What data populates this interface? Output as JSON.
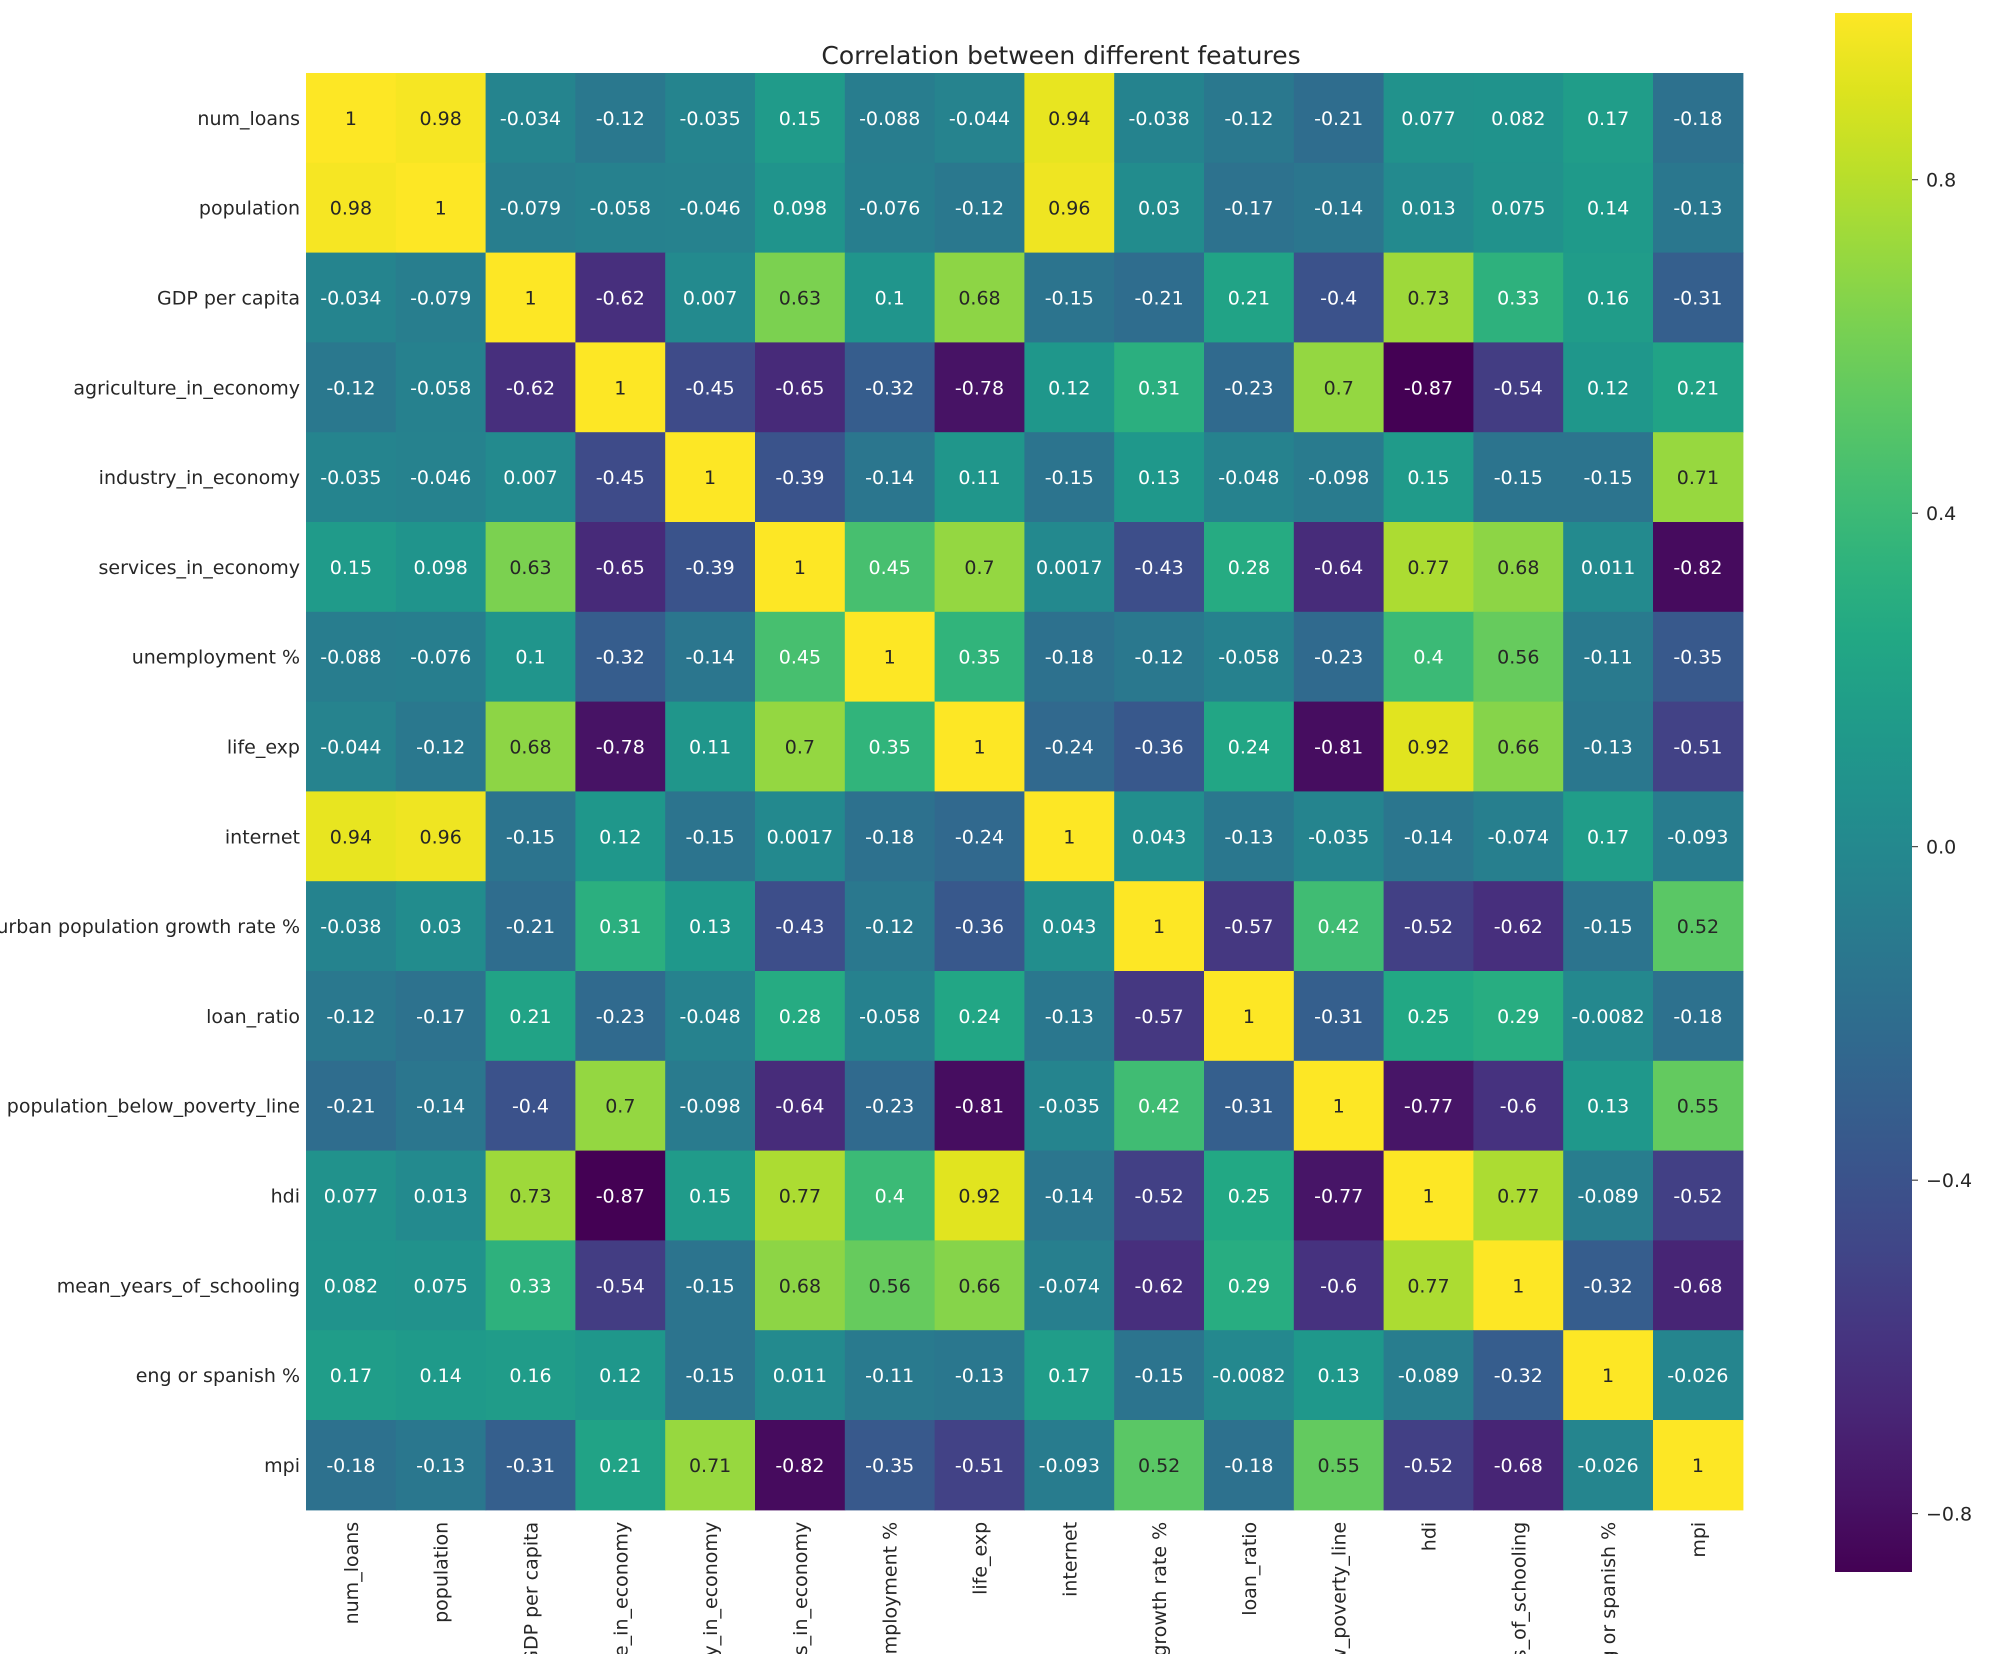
{
  "chart_data": {
    "type": "heatmap",
    "title": "Correlation between different features",
    "row_labels": [
      "num_loans",
      "population",
      "GDP per capita",
      "agriculture_in_economy",
      "industry_in_economy",
      "services_in_economy",
      "unemployment %",
      "life_exp",
      "internet",
      "urban population growth rate %",
      "loan_ratio",
      "population_below_poverty_line",
      "hdi",
      "mean_years_of_schooling",
      "eng or spanish %",
      "mpi"
    ],
    "col_labels": [
      "num_loans",
      "population",
      "GDP per capita",
      "re_in_economy",
      "ry_in_economy",
      "es_in_economy",
      "employment %",
      "life_exp",
      "internet",
      "growth rate %",
      "loan_ratio",
      "w_poverty_line",
      "hdi",
      "rs_of_schooling",
      "g or spanish %",
      "mpi"
    ],
    "values": [
      [
        1,
        0.98,
        -0.034,
        -0.12,
        -0.035,
        0.15,
        -0.088,
        -0.044,
        0.94,
        -0.038,
        -0.12,
        -0.21,
        0.077,
        0.082,
        0.17,
        -0.18
      ],
      [
        0.98,
        1,
        -0.079,
        -0.058,
        -0.046,
        0.098,
        -0.076,
        -0.12,
        0.96,
        0.03,
        -0.17,
        -0.14,
        0.013,
        0.075,
        0.14,
        -0.13
      ],
      [
        -0.034,
        -0.079,
        1,
        -0.62,
        0.007,
        0.63,
        0.1,
        0.68,
        -0.15,
        -0.21,
        0.21,
        -0.4,
        0.73,
        0.33,
        0.16,
        -0.31
      ],
      [
        -0.12,
        -0.058,
        -0.62,
        1,
        -0.45,
        -0.65,
        -0.32,
        -0.78,
        0.12,
        0.31,
        -0.23,
        0.7,
        -0.87,
        -0.54,
        0.12,
        0.21
      ],
      [
        -0.035,
        -0.046,
        0.007,
        -0.45,
        1,
        -0.39,
        -0.14,
        0.11,
        -0.15,
        0.13,
        -0.048,
        -0.098,
        0.15,
        -0.15,
        -0.15,
        0.71
      ],
      [
        0.15,
        0.098,
        0.63,
        -0.65,
        -0.39,
        1,
        0.45,
        0.7,
        0.0017,
        -0.43,
        0.28,
        -0.64,
        0.77,
        0.68,
        0.011,
        -0.82
      ],
      [
        -0.088,
        -0.076,
        0.1,
        -0.32,
        -0.14,
        0.45,
        1,
        0.35,
        -0.18,
        -0.12,
        -0.058,
        -0.23,
        0.4,
        0.56,
        -0.11,
        -0.35
      ],
      [
        -0.044,
        -0.12,
        0.68,
        -0.78,
        0.11,
        0.7,
        0.35,
        1,
        -0.24,
        -0.36,
        0.24,
        -0.81,
        0.92,
        0.66,
        -0.13,
        -0.51
      ],
      [
        0.94,
        0.96,
        -0.15,
        0.12,
        -0.15,
        0.0017,
        -0.18,
        -0.24,
        1,
        0.043,
        -0.13,
        -0.035,
        -0.14,
        -0.074,
        0.17,
        -0.093
      ],
      [
        -0.038,
        0.03,
        -0.21,
        0.31,
        0.13,
        -0.43,
        -0.12,
        -0.36,
        0.043,
        1,
        -0.57,
        0.42,
        -0.52,
        -0.62,
        -0.15,
        0.52
      ],
      [
        -0.12,
        -0.17,
        0.21,
        -0.23,
        -0.048,
        0.28,
        -0.058,
        0.24,
        -0.13,
        -0.57,
        1,
        -0.31,
        0.25,
        0.29,
        -0.0082,
        -0.18
      ],
      [
        -0.21,
        -0.14,
        -0.4,
        0.7,
        -0.098,
        -0.64,
        -0.23,
        -0.81,
        -0.035,
        0.42,
        -0.31,
        1,
        -0.77,
        -0.6,
        0.13,
        0.55
      ],
      [
        0.077,
        0.013,
        0.73,
        -0.87,
        0.15,
        0.77,
        0.4,
        0.92,
        -0.14,
        -0.52,
        0.25,
        -0.77,
        1,
        0.77,
        -0.089,
        -0.52
      ],
      [
        0.082,
        0.075,
        0.33,
        -0.54,
        -0.15,
        0.68,
        0.56,
        0.66,
        -0.074,
        -0.62,
        0.29,
        -0.6,
        0.77,
        1,
        -0.32,
        -0.68
      ],
      [
        0.17,
        0.14,
        0.16,
        0.12,
        -0.15,
        0.011,
        -0.11,
        -0.13,
        0.17,
        -0.15,
        -0.0082,
        0.13,
        -0.089,
        -0.32,
        1,
        -0.026
      ],
      [
        -0.18,
        -0.13,
        -0.31,
        0.21,
        0.71,
        -0.82,
        -0.35,
        -0.51,
        -0.093,
        0.52,
        -0.18,
        0.55,
        -0.52,
        -0.68,
        -0.026,
        1
      ]
    ],
    "colormap": "viridis",
    "vmin": -0.87,
    "vmax": 1,
    "colorbar_ticks": [
      "0.8",
      "0.4",
      "0.0",
      "−0.4",
      "−0.8"
    ],
    "colorbar_tick_values": [
      0.8,
      0.4,
      0.0,
      -0.4,
      -0.8
    ],
    "grid": false,
    "legend_placement": "right"
  }
}
